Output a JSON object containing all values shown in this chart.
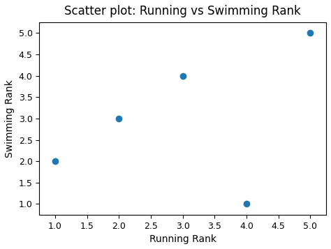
{
  "title": "Scatter plot: Running vs Swimming Rank",
  "xlabel": "Running Rank",
  "ylabel": "Swimming Rank",
  "x": [
    1,
    2,
    3,
    4,
    5
  ],
  "y": [
    2,
    3,
    4,
    1,
    5
  ],
  "dot_color": "#1f77b4",
  "dot_size": 36,
  "xlim": [
    0.75,
    5.25
  ],
  "ylim": [
    0.75,
    5.25
  ],
  "xticks": [
    1.0,
    1.5,
    2.0,
    2.5,
    3.0,
    3.5,
    4.0,
    4.5,
    5.0
  ],
  "yticks": [
    1.0,
    1.5,
    2.0,
    2.5,
    3.0,
    3.5,
    4.0,
    4.5,
    5.0
  ],
  "background_color": "#ffffff",
  "axes_background": "#ffffff",
  "title_fontsize": 12,
  "label_fontsize": 10,
  "tick_fontsize": 9
}
